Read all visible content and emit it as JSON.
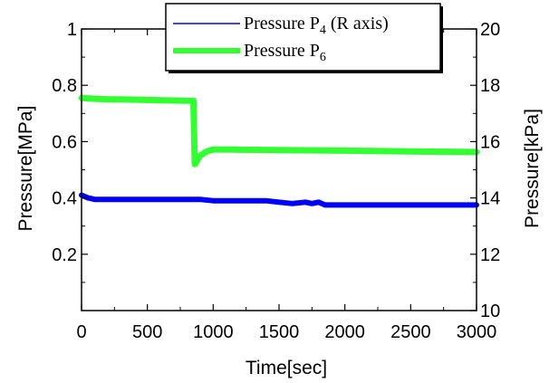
{
  "chart_data": {
    "type": "line",
    "xlabel": "Time[sec]",
    "ylabel_left": "Pressure[MPa]",
    "ylabel_right": "Pressure[kPa]",
    "xlim": [
      0,
      3000
    ],
    "ylim_left": [
      0,
      1
    ],
    "ylim_right": [
      10,
      20
    ],
    "x_ticks": [
      "0",
      "500",
      "1000",
      "1500",
      "2000",
      "2500",
      "3000"
    ],
    "y_left_ticks": [
      "0.2",
      "0.4",
      "0.6",
      "0.8",
      "1"
    ],
    "y_right_ticks": [
      "10",
      "12",
      "14",
      "16",
      "18",
      "20"
    ],
    "grid": false,
    "legend_position": "top-right",
    "series": [
      {
        "name_main": "Pressure P",
        "name_sub": "4",
        "name_suffix": " (R axis)",
        "axis": "right",
        "color": "#0000ff",
        "x": [
          0,
          50,
          100,
          200,
          300,
          400,
          500,
          600,
          700,
          800,
          900,
          1000,
          1100,
          1200,
          1300,
          1400,
          1500,
          1600,
          1700,
          1750,
          1800,
          1850,
          1900,
          2000,
          2200,
          2400,
          2600,
          2800,
          3000
        ],
        "y": [
          14.1,
          14.0,
          13.95,
          13.95,
          13.95,
          13.95,
          13.95,
          13.95,
          13.95,
          13.95,
          13.95,
          13.9,
          13.9,
          13.9,
          13.9,
          13.9,
          13.85,
          13.8,
          13.85,
          13.8,
          13.85,
          13.75,
          13.75,
          13.75,
          13.75,
          13.75,
          13.75,
          13.75,
          13.75
        ]
      },
      {
        "name_main": "Pressure P",
        "name_sub": "6",
        "name_suffix": "",
        "axis": "left",
        "color": "#33ff33",
        "x": [
          0,
          100,
          200,
          300,
          400,
          500,
          600,
          700,
          800,
          850,
          860,
          870,
          880,
          900,
          950,
          1000,
          1100,
          1200,
          1500,
          2000,
          2500,
          3000
        ],
        "y": [
          0.755,
          0.752,
          0.75,
          0.75,
          0.749,
          0.748,
          0.747,
          0.746,
          0.745,
          0.745,
          0.52,
          0.525,
          0.535,
          0.55,
          0.565,
          0.572,
          0.572,
          0.571,
          0.57,
          0.568,
          0.565,
          0.563
        ]
      }
    ]
  }
}
